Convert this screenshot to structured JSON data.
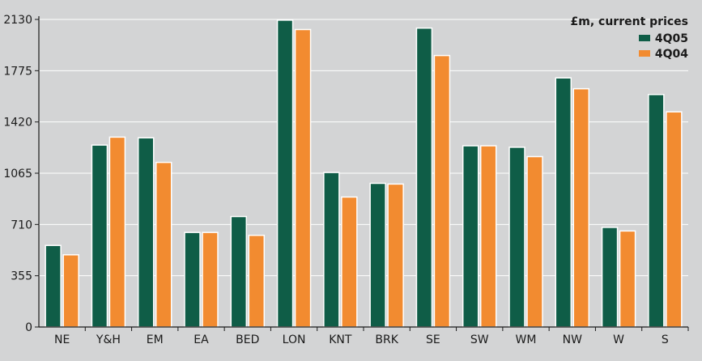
{
  "chart_data": {
    "type": "bar",
    "title": "",
    "unit_label": "£m, current prices",
    "xlabel": "",
    "ylabel": "",
    "ylim": [
      0,
      2130
    ],
    "yticks": [
      0,
      355,
      710,
      1065,
      1420,
      1775,
      2130
    ],
    "grid": true,
    "legend_position": "top-right",
    "categories": [
      "NE",
      "Y&H",
      "EM",
      "EA",
      "BED",
      "LON",
      "KNT",
      "BRK",
      "SE",
      "SW",
      "WM",
      "NW",
      "W",
      "S"
    ],
    "series": [
      {
        "name": "4Q05",
        "color": "#0f5d47",
        "values": [
          565,
          1260,
          1310,
          655,
          765,
          2125,
          1070,
          995,
          2070,
          1255,
          1245,
          1725,
          690,
          1610
        ]
      },
      {
        "name": "4Q04",
        "color": "#f28b30",
        "values": [
          500,
          1315,
          1140,
          655,
          635,
          2060,
          900,
          990,
          1880,
          1255,
          1180,
          1650,
          665,
          1490
        ]
      }
    ]
  }
}
